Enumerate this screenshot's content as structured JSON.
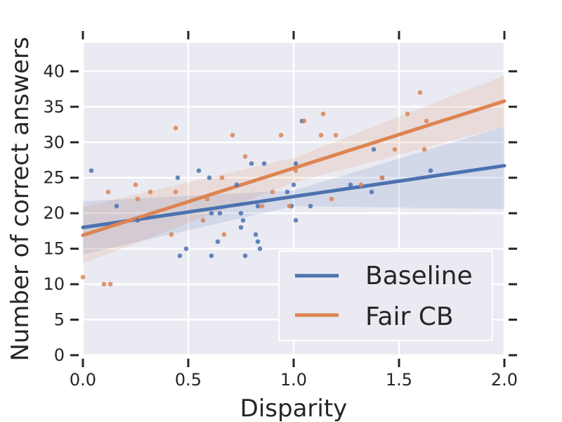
{
  "chart_data": {
    "type": "scatter",
    "xlabel": "Disparity",
    "ylabel": "Number of correct answers",
    "xlim": [
      0,
      2
    ],
    "ylim": [
      0,
      44
    ],
    "xticks": [
      0,
      0.5,
      1,
      1.5,
      2
    ],
    "xtick_labels": [
      "0.0",
      "0.5",
      "1.0",
      "1.5",
      "2.0"
    ],
    "yticks": [
      0,
      5,
      10,
      15,
      20,
      25,
      30,
      35,
      40
    ],
    "ytick_labels": [
      "0",
      "5",
      "10",
      "15",
      "20",
      "25",
      "30",
      "35",
      "40"
    ],
    "grid": true,
    "legend_position": "lower-right",
    "series": [
      {
        "name": "Baseline",
        "color": "#4c72b0",
        "regression": {
          "x": [
            0,
            2
          ],
          "y": [
            18,
            26.7
          ]
        },
        "ci_upper": [
          [
            0,
            21.7
          ],
          [
            1,
            23.2
          ],
          [
            2,
            32.2
          ]
        ],
        "ci_lower": [
          [
            0,
            14.2
          ],
          [
            1,
            21.0
          ],
          [
            2,
            20.6
          ]
        ],
        "points": [
          [
            0.04,
            26
          ],
          [
            0.16,
            21
          ],
          [
            0.26,
            19
          ],
          [
            0.45,
            25
          ],
          [
            0.46,
            14
          ],
          [
            0.49,
            15
          ],
          [
            0.55,
            26
          ],
          [
            0.6,
            25
          ],
          [
            0.61,
            20
          ],
          [
            0.61,
            14
          ],
          [
            0.64,
            16
          ],
          [
            0.65,
            20
          ],
          [
            0.73,
            24
          ],
          [
            0.75,
            20
          ],
          [
            0.75,
            18
          ],
          [
            0.76,
            19
          ],
          [
            0.77,
            14
          ],
          [
            0.8,
            27
          ],
          [
            0.82,
            17
          ],
          [
            0.83,
            16
          ],
          [
            0.83,
            21
          ],
          [
            0.84,
            15
          ],
          [
            0.86,
            27
          ],
          [
            0.97,
            23
          ],
          [
            0.99,
            21
          ],
          [
            1.0,
            24
          ],
          [
            1.01,
            19
          ],
          [
            1.01,
            27
          ],
          [
            1.04,
            33
          ],
          [
            1.08,
            21
          ],
          [
            1.27,
            24
          ],
          [
            1.37,
            23
          ],
          [
            1.38,
            29
          ],
          [
            1.42,
            25
          ],
          [
            1.65,
            26
          ]
        ]
      },
      {
        "name": "Fair CB",
        "color": "#dd8452",
        "regression": {
          "x": [
            0,
            2
          ],
          "y": [
            16.9,
            35.8
          ]
        },
        "ci_upper": [
          [
            0,
            20.9
          ],
          [
            1,
            27.8
          ],
          [
            2,
            39.4
          ]
        ],
        "ci_lower": [
          [
            0,
            12.9
          ],
          [
            1,
            24.3
          ],
          [
            2,
            32.2
          ]
        ],
        "points": [
          [
            0.0,
            11
          ],
          [
            0.1,
            10
          ],
          [
            0.12,
            23
          ],
          [
            0.13,
            10
          ],
          [
            0.25,
            24
          ],
          [
            0.26,
            22
          ],
          [
            0.32,
            23
          ],
          [
            0.42,
            17
          ],
          [
            0.44,
            32
          ],
          [
            0.44,
            23
          ],
          [
            0.57,
            19
          ],
          [
            0.59,
            22
          ],
          [
            0.66,
            25
          ],
          [
            0.67,
            17
          ],
          [
            0.71,
            31
          ],
          [
            0.77,
            28
          ],
          [
            0.85,
            21
          ],
          [
            0.9,
            23
          ],
          [
            0.94,
            31
          ],
          [
            0.98,
            21
          ],
          [
            1.01,
            26
          ],
          [
            1.05,
            33
          ],
          [
            1.13,
            31
          ],
          [
            1.14,
            34
          ],
          [
            1.18,
            22
          ],
          [
            1.2,
            31
          ],
          [
            1.32,
            24
          ],
          [
            1.42,
            25
          ],
          [
            1.48,
            29
          ],
          [
            1.54,
            34
          ],
          [
            1.6,
            37
          ],
          [
            1.62,
            29
          ],
          [
            1.63,
            33
          ]
        ]
      }
    ]
  }
}
